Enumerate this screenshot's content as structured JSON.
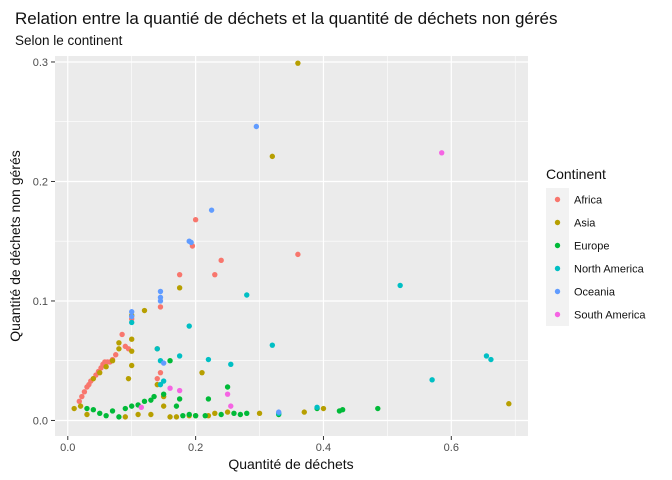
{
  "chart_data": {
    "type": "scatter",
    "title": "Relation entre la quantié de déchets et la quantité de déchets non gérés",
    "subtitle": "Selon le continent",
    "xlabel": "Quantité de déchets",
    "ylabel": "Quantité de déchets non gérés",
    "xlim": [
      -0.02,
      0.72
    ],
    "ylim": [
      -0.013,
      0.305
    ],
    "x_ticks": [
      0,
      0.2,
      0.4,
      0.6
    ],
    "x_tick_labels": [
      "0.0",
      "0.2",
      "0.4",
      "0.6"
    ],
    "y_ticks": [
      0,
      0.1,
      0.2,
      0.3
    ],
    "y_tick_labels": [
      "0.0",
      "0.1",
      "0.2",
      "0.3"
    ],
    "grid": true,
    "legend": {
      "title": "Continent",
      "placement": "right"
    },
    "panel_color": "#EBEBEB",
    "grid_color": "#FFFFFF",
    "series": [
      {
        "name": "Africa",
        "color": "#F8766D",
        "points": [
          [
            0.018,
            0.016
          ],
          [
            0.022,
            0.02
          ],
          [
            0.026,
            0.024
          ],
          [
            0.03,
            0.028
          ],
          [
            0.033,
            0.03
          ],
          [
            0.036,
            0.033
          ],
          [
            0.04,
            0.035
          ],
          [
            0.044,
            0.038
          ],
          [
            0.048,
            0.041
          ],
          [
            0.052,
            0.044
          ],
          [
            0.055,
            0.047
          ],
          [
            0.058,
            0.049
          ],
          [
            0.062,
            0.049
          ],
          [
            0.066,
            0.049
          ],
          [
            0.07,
            0.051
          ],
          [
            0.075,
            0.055
          ],
          [
            0.085,
            0.072
          ],
          [
            0.09,
            0.062
          ],
          [
            0.095,
            0.06
          ],
          [
            0.1,
            0.085
          ],
          [
            0.14,
            0.035
          ],
          [
            0.145,
            0.04
          ],
          [
            0.145,
            0.095
          ],
          [
            0.175,
            0.122
          ],
          [
            0.195,
            0.146
          ],
          [
            0.2,
            0.168
          ],
          [
            0.23,
            0.122
          ],
          [
            0.24,
            0.134
          ],
          [
            0.36,
            0.139
          ]
        ]
      },
      {
        "name": "Asia",
        "color": "#B79F00",
        "points": [
          [
            0.01,
            0.01
          ],
          [
            0.02,
            0.012
          ],
          [
            0.03,
            0.005
          ],
          [
            0.04,
            0.035
          ],
          [
            0.05,
            0.04
          ],
          [
            0.06,
            0.045
          ],
          [
            0.07,
            0.05
          ],
          [
            0.08,
            0.06
          ],
          [
            0.08,
            0.065
          ],
          [
            0.09,
            0.003
          ],
          [
            0.095,
            0.035
          ],
          [
            0.1,
            0.088
          ],
          [
            0.1,
            0.068
          ],
          [
            0.1,
            0.058
          ],
          [
            0.1,
            0.046
          ],
          [
            0.11,
            0.005
          ],
          [
            0.12,
            0.092
          ],
          [
            0.13,
            0.005
          ],
          [
            0.14,
            0.06
          ],
          [
            0.14,
            0.03
          ],
          [
            0.15,
            0.02
          ],
          [
            0.15,
            0.012
          ],
          [
            0.16,
            0.003
          ],
          [
            0.17,
            0.003
          ],
          [
            0.175,
            0.111
          ],
          [
            0.19,
            0.004
          ],
          [
            0.2,
            0.004
          ],
          [
            0.21,
            0.04
          ],
          [
            0.22,
            0.004
          ],
          [
            0.23,
            0.006
          ],
          [
            0.25,
            0.007
          ],
          [
            0.3,
            0.006
          ],
          [
            0.32,
            0.221
          ],
          [
            0.36,
            0.299
          ],
          [
            0.37,
            0.007
          ],
          [
            0.4,
            0.01
          ],
          [
            0.69,
            0.014
          ]
        ]
      },
      {
        "name": "Europe",
        "color": "#00BA38",
        "points": [
          [
            0.03,
            0.01
          ],
          [
            0.04,
            0.009
          ],
          [
            0.05,
            0.006
          ],
          [
            0.06,
            0.004
          ],
          [
            0.07,
            0.008
          ],
          [
            0.08,
            0.003
          ],
          [
            0.09,
            0.01
          ],
          [
            0.1,
            0.012
          ],
          [
            0.11,
            0.013
          ],
          [
            0.12,
            0.016
          ],
          [
            0.13,
            0.017
          ],
          [
            0.135,
            0.02
          ],
          [
            0.15,
            0.022
          ],
          [
            0.16,
            0.05
          ],
          [
            0.17,
            0.012
          ],
          [
            0.175,
            0.018
          ],
          [
            0.18,
            0.004
          ],
          [
            0.19,
            0.005
          ],
          [
            0.2,
            0.004
          ],
          [
            0.215,
            0.004
          ],
          [
            0.22,
            0.018
          ],
          [
            0.24,
            0.005
          ],
          [
            0.25,
            0.028
          ],
          [
            0.26,
            0.006
          ],
          [
            0.27,
            0.005
          ],
          [
            0.28,
            0.006
          ],
          [
            0.33,
            0.005
          ],
          [
            0.39,
            0.01
          ],
          [
            0.425,
            0.008
          ],
          [
            0.43,
            0.009
          ],
          [
            0.485,
            0.01
          ]
        ]
      },
      {
        "name": "North America",
        "color": "#00BFC4",
        "points": [
          [
            0.1,
            0.082
          ],
          [
            0.14,
            0.06
          ],
          [
            0.145,
            0.05
          ],
          [
            0.145,
            0.03
          ],
          [
            0.15,
            0.033
          ],
          [
            0.175,
            0.054
          ],
          [
            0.19,
            0.079
          ],
          [
            0.22,
            0.051
          ],
          [
            0.255,
            0.047
          ],
          [
            0.28,
            0.105
          ],
          [
            0.32,
            0.063
          ],
          [
            0.33,
            0.006
          ],
          [
            0.39,
            0.011
          ],
          [
            0.52,
            0.113
          ],
          [
            0.57,
            0.034
          ],
          [
            0.655,
            0.054
          ],
          [
            0.662,
            0.051
          ]
        ]
      },
      {
        "name": "Oceania",
        "color": "#619CFF",
        "points": [
          [
            0.1,
            0.091
          ],
          [
            0.1,
            0.087
          ],
          [
            0.145,
            0.108
          ],
          [
            0.145,
            0.103
          ],
          [
            0.145,
            0.1
          ],
          [
            0.15,
            0.048
          ],
          [
            0.19,
            0.15
          ],
          [
            0.193,
            0.149
          ],
          [
            0.225,
            0.176
          ],
          [
            0.295,
            0.246
          ],
          [
            0.33,
            0.007
          ]
        ]
      },
      {
        "name": "South America",
        "color": "#F564E3",
        "points": [
          [
            0.115,
            0.011
          ],
          [
            0.16,
            0.027
          ],
          [
            0.175,
            0.025
          ],
          [
            0.25,
            0.022
          ],
          [
            0.255,
            0.012
          ],
          [
            0.585,
            0.224
          ]
        ]
      }
    ]
  }
}
